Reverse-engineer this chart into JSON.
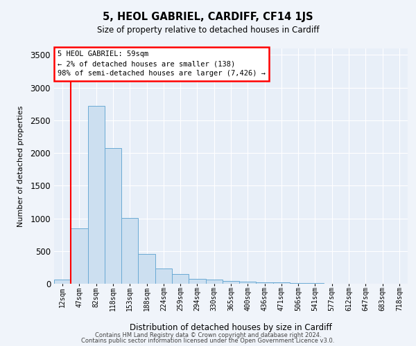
{
  "title1": "5, HEOL GABRIEL, CARDIFF, CF14 1JS",
  "title2": "Size of property relative to detached houses in Cardiff",
  "xlabel": "Distribution of detached houses by size in Cardiff",
  "ylabel": "Number of detached properties",
  "bin_labels": [
    "12sqm",
    "47sqm",
    "82sqm",
    "118sqm",
    "153sqm",
    "188sqm",
    "224sqm",
    "259sqm",
    "294sqm",
    "330sqm",
    "365sqm",
    "400sqm",
    "436sqm",
    "471sqm",
    "506sqm",
    "541sqm",
    "577sqm",
    "612sqm",
    "647sqm",
    "683sqm",
    "718sqm"
  ],
  "bar_heights": [
    65,
    850,
    2720,
    2075,
    1010,
    455,
    230,
    145,
    70,
    60,
    40,
    30,
    25,
    20,
    15,
    10,
    5,
    5,
    0,
    0,
    0
  ],
  "bar_color": "#ccdff0",
  "bar_edge_color": "#6aaad4",
  "red_line_x": 0.5,
  "annotation_box_text": "5 HEOL GABRIEL: 59sqm\n← 2% of detached houses are smaller (138)\n98% of semi-detached houses are larger (7,426) →",
  "ylim": [
    0,
    3600
  ],
  "yticks": [
    0,
    500,
    1000,
    1500,
    2000,
    2500,
    3000,
    3500
  ],
  "footer1": "Contains HM Land Registry data © Crown copyright and database right 2024.",
  "footer2": "Contains public sector information licensed under the Open Government Licence v3.0.",
  "bg_color": "#f0f4fa",
  "plot_bg_color": "#e8eff8"
}
